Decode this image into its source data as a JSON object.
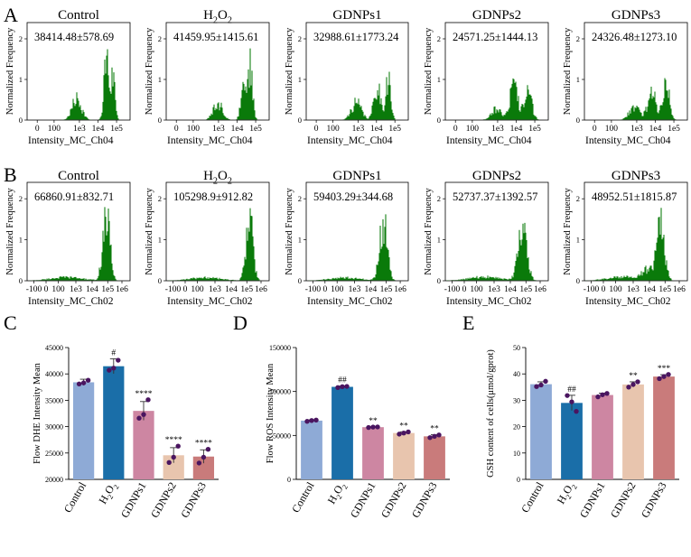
{
  "figure": {
    "panel_letters": [
      "A",
      "B",
      "C",
      "D",
      "E"
    ]
  },
  "chart_data": [
    {
      "id": "A",
      "type": "histogram-panels",
      "ylabel": "Normalized Frequency",
      "xlabel": "Intensity_MC_Ch04",
      "color": "#0a7a0a",
      "xticks": [
        "0",
        "100",
        "1e3",
        "1e4",
        "1e5"
      ],
      "xtick_positions": [
        0,
        1.0,
        2.5,
        3.6,
        4.7
      ],
      "xlim": [
        -0.6,
        5.5
      ],
      "yticks": [
        "0",
        "1",
        "2"
      ],
      "ylim": [
        0,
        2.4
      ],
      "panels": [
        {
          "name": "Control",
          "stat": "38414.48±578.69",
          "components": [
            {
              "mu": 2.35,
              "sigma": 0.28,
              "amp": 0.55
            },
            {
              "mu": 4.1,
              "sigma": 0.14,
              "amp": 1.7
            },
            {
              "mu": 4.5,
              "sigma": 0.12,
              "amp": 1.15
            }
          ]
        },
        {
          "name": "H2O2",
          "stat": "41459.95±1415.61",
          "components": [
            {
              "mu": 2.45,
              "sigma": 0.28,
              "amp": 0.45
            },
            {
              "mu": 4.0,
              "sigma": 0.16,
              "amp": 1.05
            },
            {
              "mu": 4.4,
              "sigma": 0.13,
              "amp": 1.35
            }
          ]
        },
        {
          "name": "GDNPs1",
          "stat": "32988.61±1773.24",
          "components": [
            {
              "mu": 2.4,
              "sigma": 0.3,
              "amp": 0.45
            },
            {
              "mu": 3.65,
              "sigma": 0.2,
              "amp": 0.9
            },
            {
              "mu": 4.3,
              "sigma": 0.15,
              "amp": 1.1
            }
          ]
        },
        {
          "name": "GDNPs2",
          "stat": "24571.25±1444.13",
          "components": [
            {
              "mu": 2.4,
              "sigma": 0.3,
              "amp": 0.3
            },
            {
              "mu": 3.45,
              "sigma": 0.25,
              "amp": 0.85
            },
            {
              "mu": 4.3,
              "sigma": 0.22,
              "amp": 0.75
            }
          ]
        },
        {
          "name": "GDNPs3",
          "stat": "24326.48±1273.10",
          "components": [
            {
              "mu": 2.35,
              "sigma": 0.3,
              "amp": 0.35
            },
            {
              "mu": 3.4,
              "sigma": 0.25,
              "amp": 0.75
            },
            {
              "mu": 4.25,
              "sigma": 0.2,
              "amp": 0.95
            }
          ]
        }
      ]
    },
    {
      "id": "B",
      "type": "histogram-panels",
      "ylabel": "Normalized Frequency",
      "xlabel": "Intensity_MC_Ch02",
      "color": "#0a7a0a",
      "xticks": [
        "-100",
        "0",
        "100",
        "1e3",
        "1e4",
        "1e5",
        "1e6"
      ],
      "xtick_positions": [
        -0.9,
        0,
        0.9,
        2.2,
        3.4,
        4.55,
        5.6
      ],
      "xlim": [
        -1.4,
        6.2
      ],
      "yticks": [
        "0",
        "1",
        "2"
      ],
      "ylim": [
        0,
        2.4
      ],
      "panels": [
        {
          "name": "Control",
          "stat": "66860.91±832.71",
          "components": [
            {
              "mu": 1.5,
              "sigma": 1.2,
              "amp": 0.09
            },
            {
              "mu": 4.45,
              "sigma": 0.26,
              "amp": 1.7
            }
          ]
        },
        {
          "name": "H2O2",
          "stat": "105298.9±912.82",
          "components": [
            {
              "mu": 1.5,
              "sigma": 1.2,
              "amp": 0.08
            },
            {
              "mu": 4.75,
              "sigma": 0.25,
              "amp": 1.65
            }
          ]
        },
        {
          "name": "GDNPs1",
          "stat": "59403.29±344.68",
          "components": [
            {
              "mu": 1.5,
              "sigma": 1.2,
              "amp": 0.08
            },
            {
              "mu": 4.35,
              "sigma": 0.28,
              "amp": 1.5
            }
          ]
        },
        {
          "name": "GDNPs2",
          "stat": "52737.37±1392.57",
          "components": [
            {
              "mu": 1.5,
              "sigma": 1.2,
              "amp": 0.1
            },
            {
              "mu": 4.3,
              "sigma": 0.32,
              "amp": 1.3
            }
          ]
        },
        {
          "name": "GDNPs3",
          "stat": "48952.51±1815.87",
          "components": [
            {
              "mu": 1.5,
              "sigma": 1.2,
              "amp": 0.1
            },
            {
              "mu": 3.2,
              "sigma": 0.35,
              "amp": 0.25
            },
            {
              "mu": 4.2,
              "sigma": 0.3,
              "amp": 1.4
            }
          ]
        }
      ]
    },
    {
      "id": "C",
      "type": "bar",
      "ylabel": "Flow DHE Intensity Mean",
      "ylim": [
        20000,
        45000
      ],
      "yticks": [
        20000,
        25000,
        30000,
        35000,
        40000,
        45000
      ],
      "categories": [
        "Control",
        "H2O2",
        "GDNPs1",
        "GDNPs2",
        "GDNPs3"
      ],
      "values": [
        38414.48,
        41459.95,
        32988.61,
        24571.25,
        24326.48
      ],
      "errors": [
        578.69,
        1415.61,
        1773.24,
        1444.13,
        1273.1
      ],
      "points": [
        [
          38100,
          38800,
          38300
        ],
        [
          40700,
          42600,
          41100
        ],
        [
          31600,
          35100,
          32300
        ],
        [
          23200,
          26300,
          24200
        ],
        [
          23100,
          25700,
          24200
        ]
      ],
      "significance": [
        "",
        "#",
        "****",
        "****",
        "****"
      ],
      "colors": [
        "#8eaad6",
        "#1a6ea8",
        "#cd86a2",
        "#e8c5ae",
        "#c97b7b"
      ]
    },
    {
      "id": "D",
      "type": "bar",
      "ylabel": "Flow ROS Intensity Mean",
      "ylim": [
        0,
        150000
      ],
      "yticks": [
        0,
        50000,
        100000,
        150000
      ],
      "categories": [
        "Control",
        "H2O2",
        "GDNPs1",
        "GDNPs2",
        "GDNPs3"
      ],
      "values": [
        66860.91,
        105298.9,
        59403.29,
        52737.37,
        48952.51
      ],
      "errors": [
        832.71,
        912.82,
        344.68,
        1392.57,
        1815.87
      ],
      "points": [
        [
          66000,
          67500,
          67000
        ],
        [
          104500,
          105800,
          105500
        ],
        [
          59000,
          59700,
          59500
        ],
        [
          51500,
          54000,
          52700
        ],
        [
          47500,
          50500,
          49000
        ]
      ],
      "significance": [
        "",
        "##",
        "**",
        "**",
        "**"
      ],
      "colors": [
        "#8eaad6",
        "#1a6ea8",
        "#cd86a2",
        "#e8c5ae",
        "#c97b7b"
      ]
    },
    {
      "id": "E",
      "type": "bar",
      "ylabel": "GSH content of cells(μmol/gprot)",
      "ylim": [
        0,
        50
      ],
      "yticks": [
        0,
        10,
        20,
        30,
        40,
        50
      ],
      "categories": [
        "Control",
        "H2O2",
        "GDNPs1",
        "GDNPs2",
        "GDNPs3"
      ],
      "values": [
        36.1,
        29.0,
        32.0,
        36.0,
        39.0
      ],
      "errors": [
        0.9,
        2.9,
        0.7,
        1.0,
        0.7
      ],
      "points": [
        [
          35.2,
          37.2,
          35.8
        ],
        [
          31.8,
          25.8,
          29.4
        ],
        [
          31.3,
          32.6,
          32.1
        ],
        [
          35.0,
          37.0,
          36.0
        ],
        [
          38.2,
          39.8,
          39.0
        ]
      ],
      "significance": [
        "",
        "##",
        "",
        "**",
        "***"
      ],
      "colors": [
        "#8eaad6",
        "#1a6ea8",
        "#cd86a2",
        "#e8c5ae",
        "#c97b7b"
      ]
    }
  ]
}
